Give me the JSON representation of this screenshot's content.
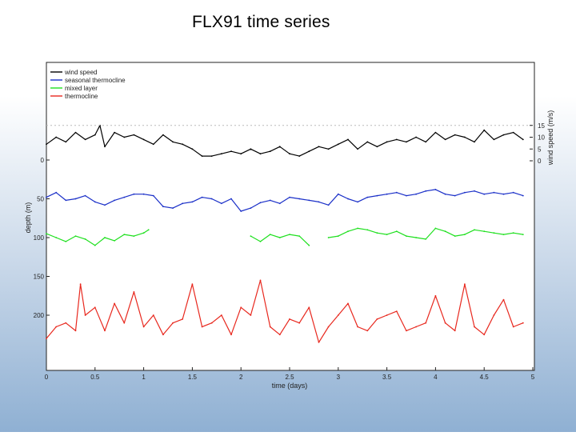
{
  "slide_title": "FLX91 time series",
  "chart_data": {
    "type": "line",
    "title": "FLX91 time series",
    "xlabel": "time (days)",
    "ylabel_left": "depth (m)",
    "ylabel_right": "wind speed (m/s)",
    "xlim": [
      0,
      5
    ],
    "ylim_depth": [
      -180,
      250
    ],
    "x_ticks": [
      "0",
      "0.5",
      "1",
      "1.5",
      "2",
      "2.5",
      "3",
      "3.5",
      "4",
      "4.5",
      "5"
    ],
    "depth_ticks": [
      "0",
      "50",
      "100",
      "150",
      "200"
    ],
    "wind_ticks": [
      "15",
      "10",
      "5",
      "0"
    ],
    "legend": {
      "placement": "top-left",
      "entries": [
        {
          "label": "wind speed",
          "color": "#000000"
        },
        {
          "label": "seasonal thermocline",
          "color": "#1a2fc8"
        },
        {
          "label": "mixed layer",
          "color": "#1fe01f"
        },
        {
          "label": "thermocline",
          "color": "#e8281e"
        }
      ]
    },
    "series": [
      {
        "name": "wind speed",
        "color": "#000000",
        "x": [
          0.0,
          0.1,
          0.2,
          0.3,
          0.4,
          0.5,
          0.55,
          0.6,
          0.7,
          0.8,
          0.9,
          1.0,
          1.1,
          1.2,
          1.3,
          1.4,
          1.5,
          1.6,
          1.7,
          1.8,
          1.9,
          2.0,
          2.1,
          2.2,
          2.3,
          2.4,
          2.5,
          2.6,
          2.7,
          2.8,
          2.9,
          3.0,
          3.1,
          3.2,
          3.3,
          3.4,
          3.5,
          3.6,
          3.7,
          3.8,
          3.9,
          4.0,
          4.1,
          4.2,
          4.3,
          4.4,
          4.5,
          4.6,
          4.7,
          4.8,
          4.9
        ],
        "y": [
          7,
          10,
          8,
          12,
          9,
          11,
          15,
          6,
          12,
          10,
          11,
          9,
          7,
          11,
          8,
          7,
          5,
          2,
          2,
          3,
          4,
          3,
          5,
          3,
          4,
          6,
          3,
          2,
          4,
          6,
          5,
          7,
          9,
          5,
          8,
          6,
          8,
          9,
          8,
          10,
          8,
          12,
          9,
          11,
          10,
          8,
          13,
          9,
          11,
          12,
          9
        ]
      },
      {
        "name": "seasonal thermocline",
        "color": "#1a2fc8",
        "x": [
          0.0,
          0.1,
          0.2,
          0.3,
          0.4,
          0.5,
          0.6,
          0.7,
          0.8,
          0.9,
          1.0,
          1.1,
          1.2,
          1.3,
          1.4,
          1.5,
          1.6,
          1.7,
          1.8,
          1.9,
          2.0,
          2.1,
          2.2,
          2.3,
          2.4,
          2.5,
          2.6,
          2.7,
          2.8,
          2.9,
          3.0,
          3.1,
          3.2,
          3.3,
          3.4,
          3.5,
          3.6,
          3.7,
          3.8,
          3.9,
          4.0,
          4.1,
          4.2,
          4.3,
          4.4,
          4.5,
          4.6,
          4.7,
          4.8,
          4.9
        ],
        "y": [
          48,
          42,
          52,
          50,
          46,
          54,
          58,
          52,
          48,
          44,
          44,
          46,
          60,
          62,
          56,
          54,
          48,
          50,
          56,
          50,
          66,
          62,
          55,
          52,
          56,
          48,
          50,
          52,
          54,
          58,
          44,
          50,
          54,
          48,
          46,
          44,
          42,
          46,
          44,
          40,
          38,
          44,
          46,
          42,
          40,
          44,
          42,
          44,
          42,
          46
        ]
      },
      {
        "name": "mixed layer",
        "color": "#1fe01f",
        "x": [
          0.0,
          0.1,
          0.2,
          0.3,
          0.4,
          0.5,
          0.6,
          0.7,
          0.8,
          0.9,
          1.0,
          1.05,
          1.1,
          2.0,
          2.1,
          2.2,
          2.3,
          2.4,
          2.5,
          2.6,
          2.7,
          2.8,
          2.9,
          3.0,
          3.1,
          3.2,
          3.3,
          3.4,
          3.5,
          3.6,
          3.7,
          3.8,
          3.9,
          4.0,
          4.1,
          4.2,
          4.3,
          4.4,
          4.5,
          4.6,
          4.7,
          4.8,
          4.9
        ],
        "y": [
          95,
          100,
          105,
          98,
          102,
          110,
          100,
          104,
          96,
          98,
          94,
          90,
          null,
          null,
          98,
          105,
          96,
          100,
          96,
          98,
          110,
          null,
          100,
          98,
          92,
          88,
          90,
          94,
          96,
          92,
          98,
          100,
          102,
          88,
          92,
          98,
          96,
          90,
          92,
          94,
          96,
          94,
          96
        ]
      },
      {
        "name": "thermocline",
        "color": "#e8281e",
        "x": [
          0.0,
          0.1,
          0.2,
          0.3,
          0.35,
          0.4,
          0.5,
          0.6,
          0.7,
          0.8,
          0.9,
          1.0,
          1.1,
          1.2,
          1.3,
          1.4,
          1.5,
          1.6,
          1.7,
          1.8,
          1.9,
          2.0,
          2.1,
          2.2,
          2.3,
          2.4,
          2.5,
          2.6,
          2.7,
          2.8,
          2.9,
          3.0,
          3.1,
          3.2,
          3.3,
          3.4,
          3.5,
          3.6,
          3.7,
          3.8,
          3.9,
          4.0,
          4.1,
          4.2,
          4.3,
          4.4,
          4.5,
          4.6,
          4.7,
          4.8,
          4.9
        ],
        "y": [
          230,
          215,
          210,
          220,
          160,
          200,
          190,
          220,
          185,
          210,
          170,
          215,
          200,
          225,
          210,
          205,
          160,
          215,
          210,
          200,
          225,
          190,
          200,
          155,
          215,
          225,
          205,
          210,
          190,
          235,
          215,
          200,
          185,
          215,
          220,
          205,
          200,
          195,
          220,
          215,
          210,
          175,
          210,
          220,
          160,
          215,
          225,
          200,
          180,
          215,
          210
        ]
      }
    ]
  }
}
